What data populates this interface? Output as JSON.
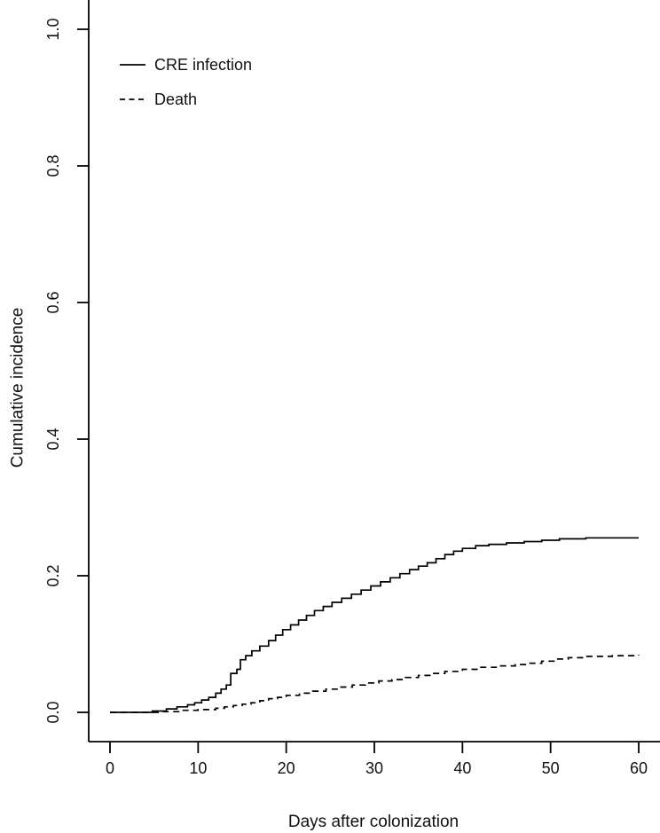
{
  "figure": {
    "background": "#ffffff",
    "line_color": "#000000",
    "text_color": "#111111"
  },
  "legend": {
    "position": "top-left",
    "items": [
      {
        "label": "CRE infection",
        "line_style": "solid"
      },
      {
        "label": "Death",
        "line_style": "dashed"
      }
    ]
  },
  "chart_data": {
    "type": "line",
    "subtype": "step-cumulative-incidence",
    "title": "",
    "xlabel": "Days after colonization",
    "ylabel": "Cumulative incidence",
    "xlim": [
      0,
      60
    ],
    "ylim": [
      0.0,
      1.0
    ],
    "grid": false,
    "legend_position": "top-left",
    "x_ticks": [
      0,
      10,
      20,
      30,
      40,
      50,
      60
    ],
    "x_tick_labels": [
      "0",
      "10",
      "20",
      "30",
      "40",
      "50",
      "60"
    ],
    "y_ticks": [
      0.0,
      0.2,
      0.4,
      0.6,
      0.8,
      1.0
    ],
    "y_tick_labels": [
      "0.0",
      "0.2",
      "0.4",
      "0.6",
      "0.8",
      "1.0"
    ],
    "series": [
      {
        "name": "CRE infection",
        "line_style": "solid",
        "step": true,
        "points": [
          [
            0,
            0.0
          ],
          [
            4.8,
            0.002
          ],
          [
            6.4,
            0.005
          ],
          [
            7.6,
            0.008
          ],
          [
            8.8,
            0.011
          ],
          [
            9.6,
            0.014
          ],
          [
            10.4,
            0.018
          ],
          [
            11.2,
            0.022
          ],
          [
            12,
            0.028
          ],
          [
            12.6,
            0.034
          ],
          [
            13.2,
            0.04
          ],
          [
            13.7,
            0.057
          ],
          [
            14.4,
            0.063
          ],
          [
            14.8,
            0.077
          ],
          [
            15.4,
            0.083
          ],
          [
            16.1,
            0.09
          ],
          [
            17,
            0.097
          ],
          [
            18,
            0.105
          ],
          [
            18.8,
            0.113
          ],
          [
            19.6,
            0.121
          ],
          [
            20.5,
            0.128
          ],
          [
            21.4,
            0.135
          ],
          [
            22.3,
            0.142
          ],
          [
            23.2,
            0.149
          ],
          [
            24.2,
            0.155
          ],
          [
            25.2,
            0.161
          ],
          [
            26.3,
            0.167
          ],
          [
            27.4,
            0.173
          ],
          [
            28.5,
            0.179
          ],
          [
            29.6,
            0.185
          ],
          [
            30.7,
            0.191
          ],
          [
            31.8,
            0.197
          ],
          [
            32.9,
            0.203
          ],
          [
            34,
            0.209
          ],
          [
            35,
            0.214
          ],
          [
            36,
            0.219
          ],
          [
            37,
            0.225
          ],
          [
            38,
            0.231
          ],
          [
            39,
            0.236
          ],
          [
            40,
            0.24
          ],
          [
            41.5,
            0.244
          ],
          [
            43,
            0.246
          ],
          [
            45,
            0.248
          ],
          [
            47,
            0.25
          ],
          [
            49,
            0.252
          ],
          [
            51,
            0.254
          ],
          [
            54,
            0.2555
          ],
          [
            60,
            0.2555
          ]
        ]
      },
      {
        "name": "Death",
        "line_style": "dashed",
        "step": true,
        "points": [
          [
            0,
            0.0
          ],
          [
            6,
            0.001
          ],
          [
            8,
            0.003
          ],
          [
            10,
            0.004
          ],
          [
            12,
            0.006
          ],
          [
            13,
            0.008
          ],
          [
            14,
            0.01
          ],
          [
            15,
            0.012
          ],
          [
            16,
            0.014
          ],
          [
            17,
            0.017
          ],
          [
            18,
            0.02
          ],
          [
            19,
            0.022
          ],
          [
            20,
            0.025
          ],
          [
            21.5,
            0.028
          ],
          [
            23,
            0.031
          ],
          [
            24.5,
            0.034
          ],
          [
            26,
            0.037
          ],
          [
            27.5,
            0.04
          ],
          [
            29,
            0.043
          ],
          [
            30.5,
            0.046
          ],
          [
            32,
            0.048
          ],
          [
            33.5,
            0.051
          ],
          [
            35,
            0.054
          ],
          [
            36.5,
            0.057
          ],
          [
            38,
            0.06
          ],
          [
            40,
            0.063
          ],
          [
            42,
            0.066
          ],
          [
            44,
            0.068
          ],
          [
            46,
            0.07
          ],
          [
            47.5,
            0.072
          ],
          [
            49,
            0.075
          ],
          [
            50.5,
            0.078
          ],
          [
            52,
            0.08
          ],
          [
            54,
            0.082
          ],
          [
            57,
            0.083
          ],
          [
            60,
            0.084
          ]
        ]
      }
    ]
  }
}
